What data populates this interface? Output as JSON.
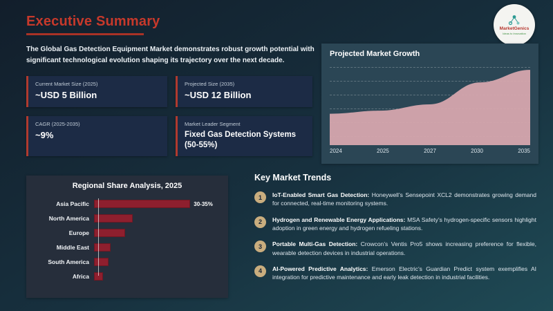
{
  "slide": {
    "title": "Executive Summary",
    "logo": {
      "brand": "MarketGenics",
      "tagline": "Ideas to Innovation"
    },
    "intro": "The Global Gas Detection Equipment Market demonstrates robust growth potential with significant technological evolution shaping its trajectory over the next decade.",
    "stats": [
      {
        "label": "Current Market Size (2025)",
        "value": "~USD 5 Billion"
      },
      {
        "label": "Projected Size (2035)",
        "value": "~USD 12 Billion"
      },
      {
        "label": "CAGR (2025-2035)",
        "value": "~9%"
      },
      {
        "label": "Market Leader Segment",
        "value": "Fixed Gas Detection Systems (50-55%)"
      }
    ],
    "trends": {
      "title": "Key Market Trends",
      "items": [
        {
          "num": "1",
          "lead": "IoT-Enabled Smart Gas Detection:",
          "text": "Honeywell’s Sensepoint XCL2 demonstrates growing demand for connected, real-time monitoring systems."
        },
        {
          "num": "2",
          "lead": "Hydrogen and Renewable Energy Applications:",
          "text": "MSA Safety’s hydrogen-specific sensors highlight adoption in green energy and hydrogen refueling stations."
        },
        {
          "num": "3",
          "lead": "Portable Multi-Gas Detection:",
          "text": "Crowcon’s Ventis Pro5 shows increasing preference for flexible, wearable detection devices in industrial operations."
        },
        {
          "num": "4",
          "lead": "AI-Powered Predictive Analytics:",
          "text": "Emerson Electric’s Guardian Predict system exemplifies AI integration for predictive maintenance and early leak detection in industrial facilities."
        }
      ]
    },
    "colors": {
      "accent_red": "#b03a2e",
      "title_red": "#c7392b",
      "area_fill": "#d6a7ae",
      "bar_red": "#8e1f2e",
      "badge_tan": "#c9ad7e"
    }
  },
  "chart_data": [
    {
      "type": "area",
      "title": "Projected Market Growth",
      "x": [
        "2024",
        "2025",
        "2027",
        "2030",
        "2035"
      ],
      "values": [
        5,
        5.5,
        6.5,
        10,
        12
      ],
      "ylim": [
        0,
        13
      ],
      "grid": "dashed-horizontal",
      "legend": "none"
    },
    {
      "type": "bar",
      "orientation": "horizontal",
      "title": "Regional Share Analysis, 2025",
      "categories": [
        "Asia Pacific",
        "North America",
        "Europe",
        "Middle East",
        "South America",
        "Africa"
      ],
      "values": [
        32.5,
        13,
        10.5,
        5.5,
        5,
        3
      ],
      "value_labels": [
        "30-35%",
        "",
        "",
        "",
        "",
        ""
      ],
      "scale_max": 42,
      "legend": "none"
    }
  ]
}
